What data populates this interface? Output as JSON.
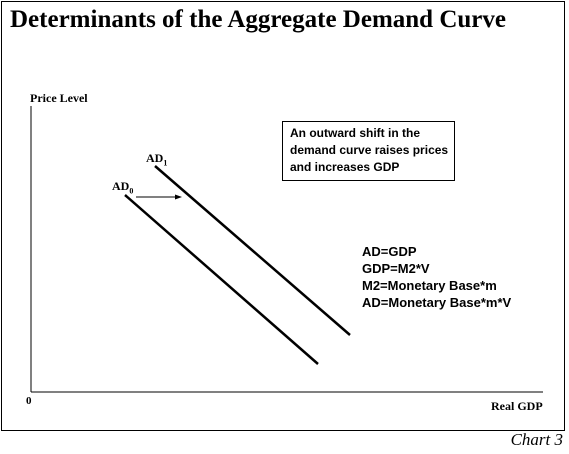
{
  "title": "Determinants of the Aggregate Demand Curve",
  "axes": {
    "y_label": "Price Level",
    "x_label": "Real GDP",
    "origin": "0"
  },
  "curves": [
    {
      "name": "AD",
      "subscript": "1"
    },
    {
      "name": "AD",
      "subscript": "0"
    }
  ],
  "annotation": "An outward shift in the demand curve raises prices and increases GDP",
  "equations": [
    "AD=GDP",
    "GDP=M2*V",
    "M2=Monetary Base*m",
    "AD=Monetary Base*m*V"
  ],
  "caption": "Chart 3"
}
